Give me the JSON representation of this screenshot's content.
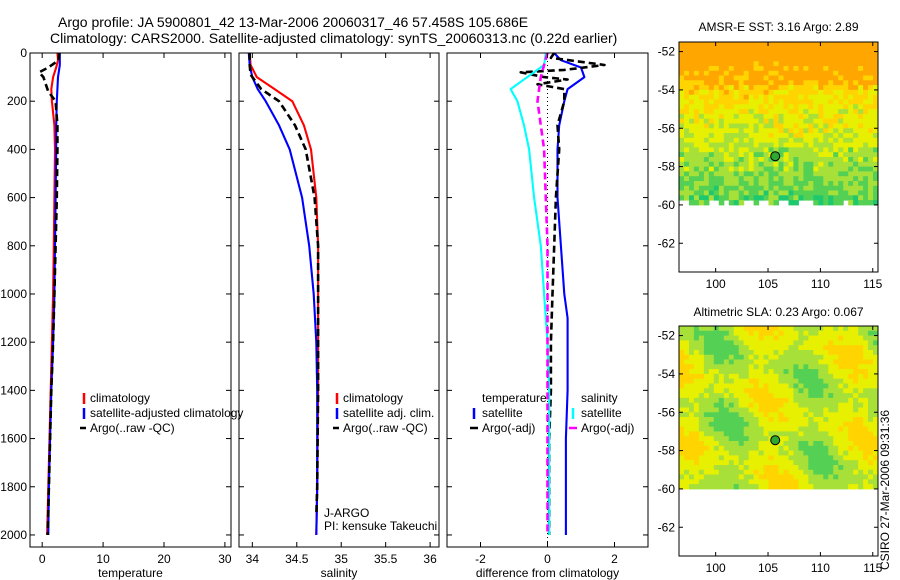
{
  "header": {
    "line1": "Argo profile: JA 5900801_42 13-Mar-2006 20060317_46 57.458S 105.686E",
    "line2": "Climatology: CARS2000. Satellite-adjusted climatology: synTS_20060313.nc (0.22d earlier)"
  },
  "footer_stamp": "CSIRO 27-Mar-2006 09:31:36",
  "colors": {
    "red": "#ff0000",
    "blue": "#0000ff",
    "black": "#000000",
    "cyan": "#00ffff",
    "magenta": "#ff00ff"
  },
  "chart_data": [
    {
      "type": "line",
      "id": "temperature",
      "xlabel": "temperature",
      "xlim": [
        -2,
        31
      ],
      "ylim": [
        0,
        2050
      ],
      "y_inverted": true,
      "xticks": [
        0,
        10,
        20,
        30
      ],
      "yticks": [
        0,
        200,
        400,
        600,
        800,
        1000,
        1200,
        1400,
        1600,
        1800,
        2000
      ],
      "legend": {
        "items": [
          {
            "label": "climatology",
            "color": "red"
          },
          {
            "label": "satellite-adjusted climatology",
            "color": "blue"
          },
          {
            "label": "Argo(..raw -QC)",
            "color": "black",
            "dashed": true
          }
        ]
      },
      "series": [
        {
          "color": "red",
          "dashed": false,
          "points": [
            [
              2.5,
              0
            ],
            [
              2.6,
              30
            ],
            [
              2.3,
              60
            ],
            [
              1.8,
              100
            ],
            [
              1.5,
              150
            ],
            [
              1.6,
              200
            ],
            [
              2.0,
              300
            ],
            [
              2.1,
              400
            ],
            [
              2.0,
              600
            ],
            [
              1.9,
              800
            ],
            [
              1.8,
              1000
            ],
            [
              1.6,
              1200
            ],
            [
              1.4,
              1400
            ],
            [
              1.2,
              1600
            ],
            [
              1.0,
              1800
            ],
            [
              0.8,
              2000
            ]
          ]
        },
        {
          "color": "blue",
          "dashed": false,
          "points": [
            [
              2.9,
              0
            ],
            [
              2.9,
              50
            ],
            [
              2.6,
              100
            ],
            [
              2.4,
              200
            ],
            [
              2.3,
              300
            ],
            [
              2.3,
              400
            ],
            [
              2.2,
              600
            ],
            [
              2.1,
              800
            ],
            [
              2.0,
              1000
            ],
            [
              1.8,
              1200
            ],
            [
              1.5,
              1400
            ],
            [
              1.3,
              1600
            ],
            [
              1.1,
              1800
            ],
            [
              1.0,
              2000
            ]
          ]
        },
        {
          "color": "black",
          "dashed": true,
          "points": [
            [
              2.8,
              0
            ],
            [
              2.7,
              30
            ],
            [
              1.0,
              60
            ],
            [
              -0.5,
              80
            ],
            [
              0.2,
              100
            ],
            [
              0.6,
              130
            ],
            [
              1.0,
              160
            ],
            [
              2.2,
              200
            ],
            [
              2.5,
              300
            ],
            [
              2.5,
              400
            ],
            [
              2.4,
              600
            ],
            [
              2.2,
              800
            ],
            [
              2.0,
              1000
            ],
            [
              1.8,
              1200
            ],
            [
              1.5,
              1400
            ],
            [
              1.3,
              1600
            ],
            [
              1.1,
              1800
            ],
            [
              0.9,
              2000
            ]
          ]
        }
      ]
    },
    {
      "type": "line",
      "id": "salinity",
      "xlabel": "salinity",
      "xlim": [
        33.85,
        36.1
      ],
      "ylim": [
        0,
        2050
      ],
      "y_inverted": true,
      "xticks": [
        34,
        34.5,
        35,
        35.5,
        36
      ],
      "legend": {
        "items": [
          {
            "label": "climatology",
            "color": "red"
          },
          {
            "label": "satellite adj. clim.",
            "color": "blue"
          },
          {
            "label": "Argo(..raw -QC)",
            "color": "black",
            "dashed": true
          }
        ]
      },
      "annotation": [
        "J-ARGO",
        "PI: kensuke Takeuchi"
      ],
      "series": [
        {
          "color": "red",
          "dashed": false,
          "points": [
            [
              33.97,
              0
            ],
            [
              33.98,
              50
            ],
            [
              34.05,
              100
            ],
            [
              34.25,
              150
            ],
            [
              34.45,
              200
            ],
            [
              34.58,
              300
            ],
            [
              34.66,
              400
            ],
            [
              34.72,
              600
            ],
            [
              34.74,
              800
            ],
            [
              34.74,
              1000
            ],
            [
              34.74,
              1400
            ],
            [
              34.73,
              1800
            ],
            [
              34.72,
              2000
            ]
          ]
        },
        {
          "color": "blue",
          "dashed": false,
          "points": [
            [
              33.96,
              0
            ],
            [
              33.97,
              50
            ],
            [
              34.0,
              100
            ],
            [
              34.06,
              150
            ],
            [
              34.15,
              200
            ],
            [
              34.3,
              300
            ],
            [
              34.42,
              400
            ],
            [
              34.56,
              600
            ],
            [
              34.64,
              800
            ],
            [
              34.69,
              1000
            ],
            [
              34.72,
              1200
            ],
            [
              34.73,
              1400
            ],
            [
              34.73,
              1800
            ],
            [
              34.72,
              2000
            ]
          ]
        },
        {
          "color": "black",
          "dashed": true,
          "points": [
            [
              33.97,
              0
            ],
            [
              33.97,
              50
            ],
            [
              33.98,
              90
            ],
            [
              34.1,
              150
            ],
            [
              34.3,
              200
            ],
            [
              34.48,
              300
            ],
            [
              34.6,
              400
            ],
            [
              34.7,
              600
            ],
            [
              34.74,
              800
            ],
            [
              34.74,
              1000
            ],
            [
              34.74,
              1400
            ],
            [
              34.73,
              1800
            ],
            [
              34.72,
              1920
            ]
          ]
        }
      ]
    },
    {
      "type": "line",
      "id": "difference",
      "xlabel": "difference from climatology",
      "xlim": [
        -3,
        3
      ],
      "ylim": [
        0,
        2050
      ],
      "y_inverted": true,
      "xticks": [
        -2,
        0,
        2
      ],
      "legend": {
        "groups": [
          {
            "heading": "temperature",
            "items": [
              {
                "label": "satellite",
                "color": "blue"
              },
              {
                "label": "Argo(-adj)",
                "color": "black",
                "dashed": true
              }
            ]
          },
          {
            "heading": "salinity",
            "items": [
              {
                "label": "satellite",
                "color": "cyan"
              },
              {
                "label": "Argo(-adj)",
                "color": "magenta",
                "dashed": true
              }
            ]
          }
        ]
      },
      "series": [
        {
          "color": "blue",
          "dashed": false,
          "points": [
            [
              0.2,
              0
            ],
            [
              0.4,
              30
            ],
            [
              1.0,
              60
            ],
            [
              1.1,
              100
            ],
            [
              0.6,
              150
            ],
            [
              0.5,
              200
            ],
            [
              0.35,
              300
            ],
            [
              0.3,
              400
            ],
            [
              0.3,
              600
            ],
            [
              0.4,
              800
            ],
            [
              0.5,
              1000
            ],
            [
              0.6,
              1100
            ],
            [
              0.6,
              1200
            ],
            [
              0.6,
              1400
            ],
            [
              0.55,
              1600
            ],
            [
              0.55,
              1800
            ],
            [
              0.55,
              2000
            ]
          ]
        },
        {
          "color": "black",
          "dashed": true,
          "points": [
            [
              0.2,
              0
            ],
            [
              0.1,
              20
            ],
            [
              1.7,
              50
            ],
            [
              0.5,
              70
            ],
            [
              -0.8,
              80
            ],
            [
              -0.1,
              100
            ],
            [
              0.6,
              110
            ],
            [
              -0.3,
              130
            ],
            [
              0.5,
              150
            ],
            [
              0.5,
              200
            ],
            [
              0.3,
              300
            ],
            [
              0.35,
              400
            ],
            [
              0.25,
              600
            ],
            [
              0.2,
              800
            ],
            [
              0.15,
              1000
            ],
            [
              0.1,
              1200
            ],
            [
              0.1,
              1400
            ],
            [
              0.05,
              1600
            ],
            [
              0.05,
              1800
            ],
            [
              0.05,
              2000
            ]
          ]
        },
        {
          "color": "cyan",
          "dashed": false,
          "points": [
            [
              -0.05,
              0
            ],
            [
              -0.1,
              50
            ],
            [
              -1.1,
              150
            ],
            [
              -0.9,
              200
            ],
            [
              -0.7,
              300
            ],
            [
              -0.55,
              400
            ],
            [
              -0.4,
              600
            ],
            [
              -0.2,
              800
            ],
            [
              -0.1,
              1000
            ],
            [
              0.0,
              1200
            ],
            [
              0.05,
              1400
            ],
            [
              0.05,
              1800
            ],
            [
              0.05,
              2000
            ]
          ]
        },
        {
          "color": "magenta",
          "dashed": true,
          "points": [
            [
              0.0,
              0
            ],
            [
              -0.1,
              50
            ],
            [
              -0.2,
              100
            ],
            [
              -0.25,
              150
            ],
            [
              -0.3,
              200
            ],
            [
              -0.2,
              300
            ],
            [
              -0.1,
              400
            ],
            [
              -0.05,
              600
            ],
            [
              0.0,
              800
            ],
            [
              0.0,
              1200
            ],
            [
              0.0,
              1600
            ],
            [
              0.0,
              2000
            ]
          ]
        }
      ]
    },
    {
      "type": "heatmap",
      "id": "sst_map",
      "title": "AMSR-E SST: 3.16 Argo: 2.89",
      "xlim": [
        96.5,
        115.5
      ],
      "ylim": [
        -63.5,
        -51.5
      ],
      "xticks": [
        100,
        105,
        110,
        115
      ],
      "yticks": [
        -52,
        -54,
        -56,
        -58,
        -60,
        -62
      ],
      "no_data_below": -60,
      "argo_marker": [
        105.686,
        -57.458
      ],
      "palette": [
        "#ffa600",
        "#ffd400",
        "#e6f000",
        "#a8e03a",
        "#54d054",
        "#1ec86e"
      ]
    },
    {
      "type": "heatmap",
      "id": "sla_map",
      "title": "Altimetric SLA: 0.23 Argo: 0.067",
      "xlim": [
        96.5,
        115.5
      ],
      "ylim": [
        -63.5,
        -51.5
      ],
      "xticks": [
        100,
        105,
        110,
        115
      ],
      "yticks": [
        -52,
        -54,
        -56,
        -58,
        -60,
        -62
      ],
      "no_data_below": -60,
      "argo_marker": [
        105.686,
        -57.458
      ],
      "palette": [
        "#ffa600",
        "#ffd400",
        "#e6f000",
        "#a8e03a",
        "#54d054",
        "#1ec86e"
      ]
    }
  ]
}
